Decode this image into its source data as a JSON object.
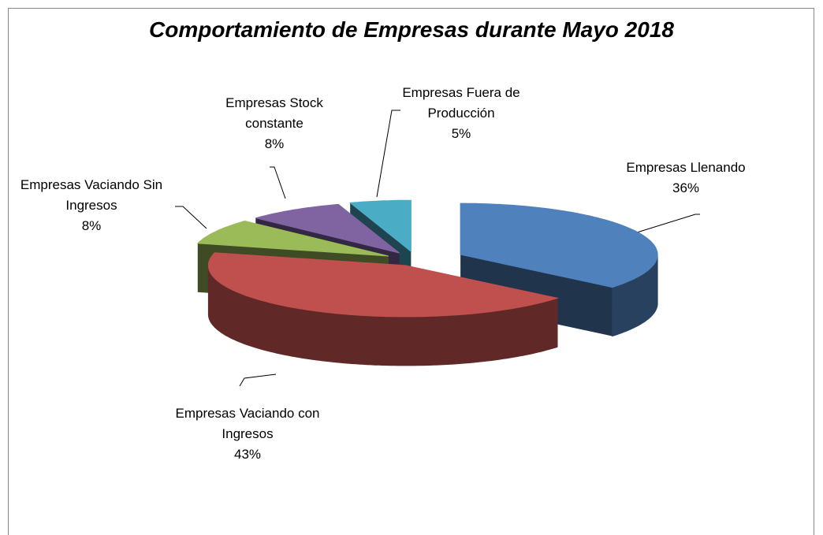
{
  "chart_data": {
    "type": "pie3d",
    "title": "Comportamiento de Empresas durante Mayo 2018",
    "categories": [
      "Empresas Llenando",
      "Empresas Vaciando con Ingresos",
      "Empresas Vaciando Sin Ingresos",
      "Empresas Stock constante",
      "Empresas Fuera de Producción"
    ],
    "values": [
      36,
      43,
      8,
      8,
      5
    ],
    "value_labels": [
      "36%",
      "43%",
      "8%",
      "8%",
      "5%"
    ],
    "colors": [
      "#4f81bd",
      "#c0504d",
      "#9bbb59",
      "#8064a2",
      "#4bacc6"
    ]
  }
}
